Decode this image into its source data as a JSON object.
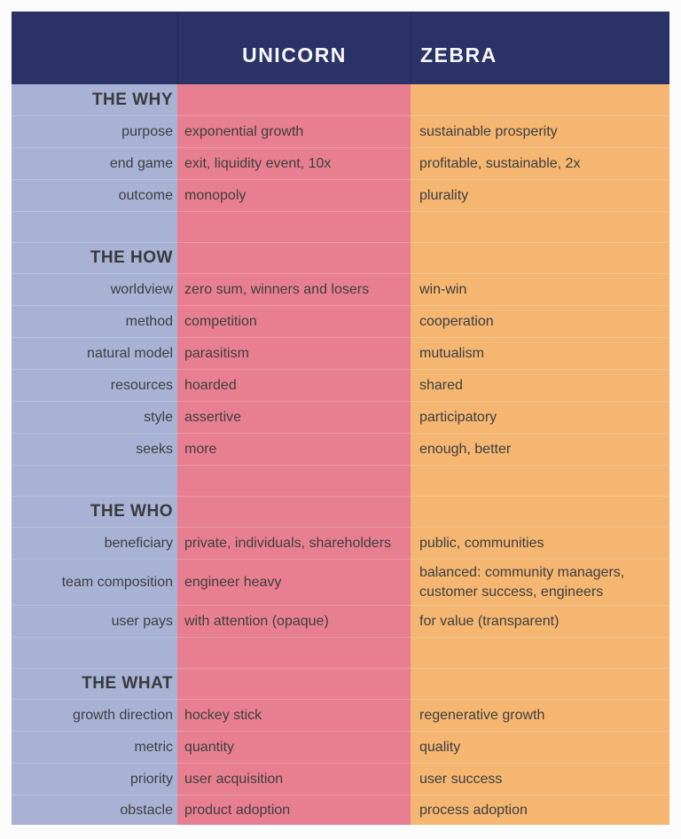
{
  "title": "Unicorn vs Zebra comparison table",
  "colors": {
    "header_bg": "#2b3267",
    "label_column_bg": "#a7b2d4",
    "unicorn_column_bg": "#e87f90",
    "zebra_column_bg": "#f4b670",
    "header_text": "#f7f7f9",
    "body_text": "#3e3e40",
    "page_bg": "#fcfcfc"
  },
  "columns": {
    "unicorn": "UNICORN",
    "zebra": "ZEBRA"
  },
  "sections": [
    {
      "title": "THE WHY",
      "rows": [
        {
          "label": "purpose",
          "unicorn": "exponential growth",
          "zebra": "sustainable prosperity"
        },
        {
          "label": "end game",
          "unicorn": "exit, liquidity event, 10x",
          "zebra": "profitable, sustainable, 2x"
        },
        {
          "label": "outcome",
          "unicorn": "monopoly",
          "zebra": "plurality"
        }
      ]
    },
    {
      "title": "THE HOW",
      "rows": [
        {
          "label": "worldview",
          "unicorn": "zero sum, winners and losers",
          "zebra": "win-win"
        },
        {
          "label": "method",
          "unicorn": "competition",
          "zebra": "cooperation"
        },
        {
          "label": "natural model",
          "unicorn": "parasitism",
          "zebra": "mutualism"
        },
        {
          "label": "resources",
          "unicorn": "hoarded",
          "zebra": "shared"
        },
        {
          "label": "style",
          "unicorn": "assertive",
          "zebra": "participatory"
        },
        {
          "label": "seeks",
          "unicorn": "more",
          "zebra": "enough, better"
        }
      ]
    },
    {
      "title": "THE WHO",
      "rows": [
        {
          "label": "beneficiary",
          "unicorn": "private, individuals, shareholders",
          "zebra": "public, communities"
        },
        {
          "label": "team composition",
          "unicorn": "engineer heavy",
          "zebra": "balanced: community managers,\ncustomer success, engineers"
        },
        {
          "label": "user pays",
          "unicorn": "with attention (opaque)",
          "zebra": "for value (transparent)"
        }
      ]
    },
    {
      "title": "THE WHAT",
      "rows": [
        {
          "label": "growth direction",
          "unicorn": "hockey stick",
          "zebra": "regenerative growth"
        },
        {
          "label": "metric",
          "unicorn": "quantity",
          "zebra": "quality"
        },
        {
          "label": "priority",
          "unicorn": "user acquisition",
          "zebra": "user success"
        },
        {
          "label": "obstacle",
          "unicorn": "product adoption",
          "zebra": "process adoption"
        }
      ]
    }
  ]
}
